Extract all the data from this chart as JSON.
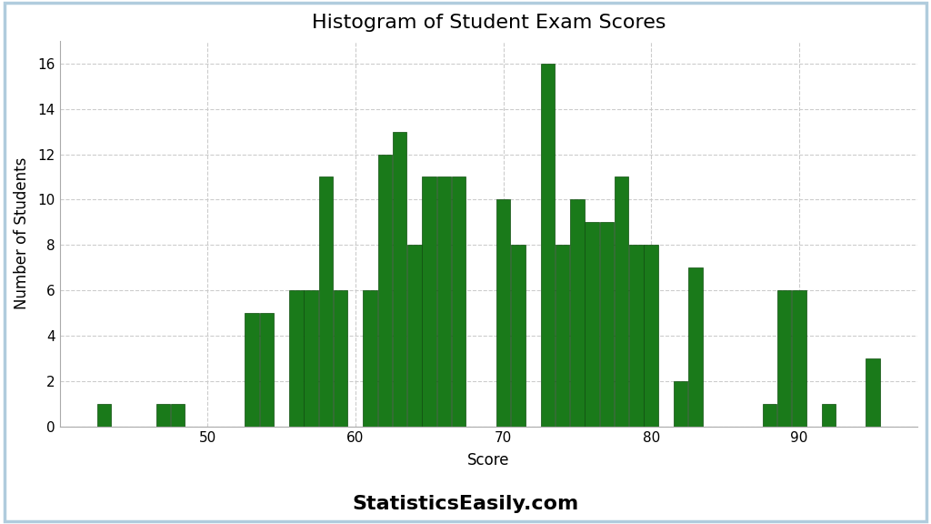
{
  "title": "Histogram of Student Exam Scores",
  "xlabel": "Score",
  "ylabel": "Number of Students",
  "bar_color": "#1a7a1a",
  "bar_edgecolor": "#0d4d0d",
  "background_color": "#ffffff",
  "watermark": "StatisticsEasily.com",
  "scores": [
    43,
    47,
    48,
    53,
    54,
    56,
    57,
    58,
    59,
    61,
    62,
    63,
    64,
    65,
    66,
    67,
    70,
    71,
    73,
    74,
    75,
    76,
    77,
    78,
    79,
    80,
    82,
    83,
    88,
    89,
    90,
    92,
    95
  ],
  "heights": [
    1,
    1,
    1,
    5,
    5,
    6,
    6,
    11,
    6,
    6,
    12,
    13,
    8,
    11,
    11,
    11,
    10,
    8,
    16,
    8,
    10,
    9,
    9,
    11,
    8,
    8,
    2,
    7,
    1,
    6,
    6,
    1,
    3
  ],
  "ylim": [
    0,
    17
  ],
  "xlim": [
    40,
    98
  ],
  "xticks": [
    50,
    60,
    70,
    80,
    90
  ],
  "yticks": [
    0,
    2,
    4,
    6,
    8,
    10,
    12,
    14,
    16
  ],
  "title_fontsize": 16,
  "label_fontsize": 12,
  "tick_fontsize": 11,
  "watermark_fontsize": 16,
  "grid_color": "#cccccc",
  "grid_linestyle": "--",
  "bar_width": 0.95,
  "outer_border_color": "#b0ccdd"
}
